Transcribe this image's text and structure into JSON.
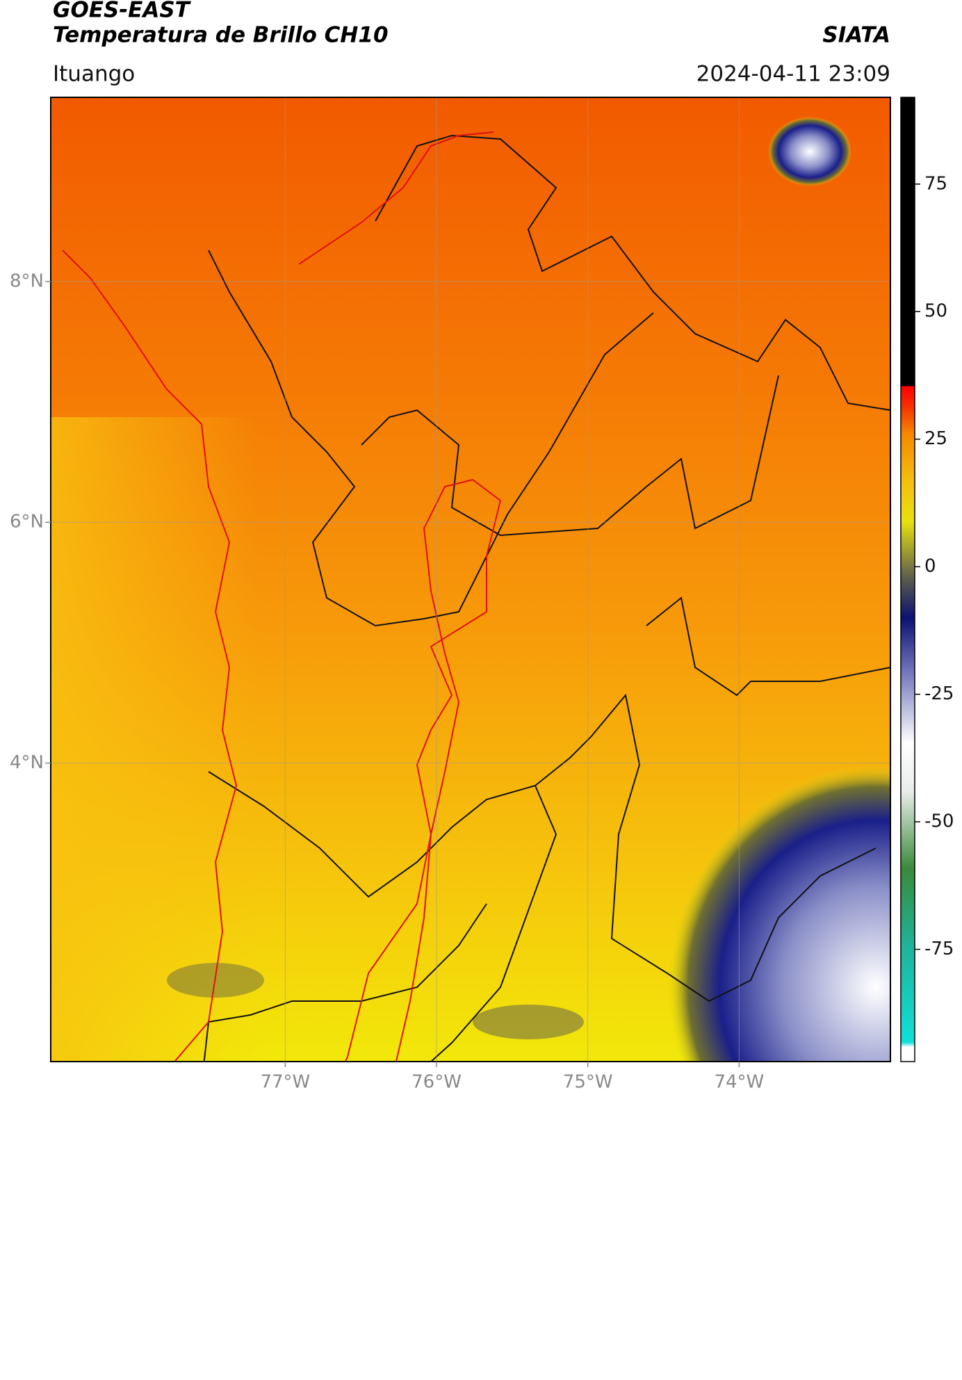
{
  "header": {
    "title": "GOES-EAST",
    "subtitle": "Temperatura de Brillo CH10",
    "org": "SIATA",
    "location": "Ituango",
    "timestamp": "2024-04-11 23:09"
  },
  "map": {
    "lonlim": [
      -78.55,
      -73.0
    ],
    "latlim": [
      1.52,
      9.53
    ],
    "lat_ticks": [
      {
        "value": 8,
        "label": "8°N"
      },
      {
        "value": 6,
        "label": "6°N"
      },
      {
        "value": 4,
        "label": "4°N"
      }
    ],
    "lon_ticks": [
      {
        "value": -77,
        "label": "77°W"
      },
      {
        "value": -76,
        "label": "76°W"
      },
      {
        "value": -75,
        "label": "75°W"
      },
      {
        "value": -74,
        "label": "74°W"
      }
    ],
    "grid": true
  },
  "colorbar": {
    "lim": [
      -97,
      92
    ],
    "ticks": [
      75,
      50,
      25,
      0,
      -25,
      -50,
      -75
    ]
  }
}
